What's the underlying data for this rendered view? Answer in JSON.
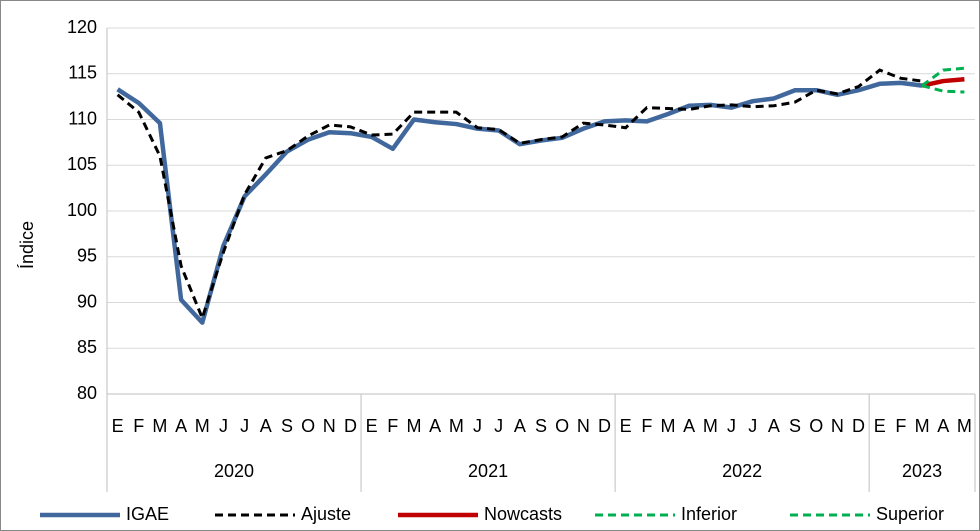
{
  "chart_data": {
    "type": "line",
    "y_label": "Índice",
    "categories": [
      "E",
      "F",
      "M",
      "A",
      "M",
      "J",
      "J",
      "A",
      "S",
      "O",
      "N",
      "D",
      "E",
      "F",
      "M",
      "A",
      "M",
      "J",
      "J",
      "A",
      "S",
      "O",
      "N",
      "D",
      "E",
      "F",
      "M",
      "A",
      "M",
      "J",
      "J",
      "A",
      "S",
      "O",
      "N",
      "D",
      "E",
      "F",
      "M",
      "A",
      "M"
    ],
    "category_groups": [
      "2020",
      "2021",
      "2022",
      "2023"
    ],
    "ylim": [
      80,
      120
    ],
    "yticks": [
      80,
      85,
      90,
      95,
      100,
      105,
      110,
      115,
      120
    ],
    "grid": true,
    "legend": "bottom",
    "series": [
      {
        "name": "IGAE",
        "color": "#41689c",
        "style": "solid",
        "values": [
          113.3,
          111.8,
          109.6,
          90.3,
          87.8,
          96.2,
          101.6,
          104,
          106.5,
          107.8,
          108.6,
          108.5,
          108.1,
          106.8,
          110,
          109.7,
          109.5,
          109,
          108.8,
          107.3,
          107.7,
          108,
          109,
          109.8,
          109.9,
          109.8,
          110.6,
          111.5,
          111.6,
          111.3,
          112,
          112.3,
          113.2,
          113.2,
          112.7,
          113.2,
          113.9,
          114,
          113.7,
          null,
          null
        ]
      },
      {
        "name": "Ajuste",
        "color": "#000000",
        "style": "dashed",
        "values": [
          112.7,
          110.8,
          106,
          94,
          88.3,
          95.5,
          101.8,
          105.8,
          106.6,
          108.2,
          109.4,
          109.2,
          108.3,
          108.4,
          110.8,
          110.8,
          110.8,
          109.1,
          108.9,
          107.4,
          107.8,
          108.1,
          109.6,
          109.4,
          109.1,
          111.3,
          111.2,
          111.1,
          111.5,
          111.6,
          111.4,
          111.5,
          111.9,
          113.2,
          112.8,
          113.6,
          115.4,
          114.5,
          114.2,
          null,
          null
        ]
      },
      {
        "name": "Nowcasts",
        "color": "#c00000",
        "style": "solid",
        "values": [
          null,
          null,
          null,
          null,
          null,
          null,
          null,
          null,
          null,
          null,
          null,
          null,
          null,
          null,
          null,
          null,
          null,
          null,
          null,
          null,
          null,
          null,
          null,
          null,
          null,
          null,
          null,
          null,
          null,
          null,
          null,
          null,
          null,
          null,
          null,
          null,
          null,
          null,
          113.7,
          114.2,
          114.4
        ]
      },
      {
        "name": "Inferior",
        "color": "#00b050",
        "style": "dashed",
        "values": [
          null,
          null,
          null,
          null,
          null,
          null,
          null,
          null,
          null,
          null,
          null,
          null,
          null,
          null,
          null,
          null,
          null,
          null,
          null,
          null,
          null,
          null,
          null,
          null,
          null,
          null,
          null,
          null,
          null,
          null,
          null,
          null,
          null,
          null,
          null,
          null,
          null,
          null,
          113.7,
          113.1,
          113.0
        ]
      },
      {
        "name": "Superior",
        "color": "#00b050",
        "style": "dashed",
        "values": [
          null,
          null,
          null,
          null,
          null,
          null,
          null,
          null,
          null,
          null,
          null,
          null,
          null,
          null,
          null,
          null,
          null,
          null,
          null,
          null,
          null,
          null,
          null,
          null,
          null,
          null,
          null,
          null,
          null,
          null,
          null,
          null,
          null,
          null,
          null,
          null,
          null,
          null,
          113.7,
          115.4,
          115.6
        ]
      }
    ]
  }
}
